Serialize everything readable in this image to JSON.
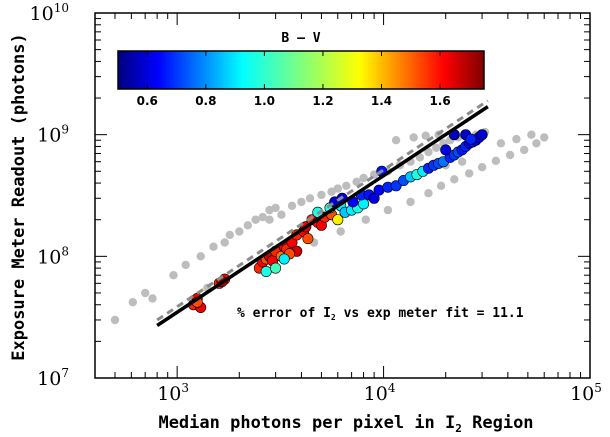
{
  "chart_data": {
    "type": "scatter",
    "title": "",
    "xlabel_prefix": "Median photons per pixel in I",
    "xlabel_subscript": "2",
    "xlabel_suffix": " Region",
    "ylabel": "Exposure Meter Readout (photons)",
    "xscale": "log",
    "yscale": "log",
    "xlim": [
      400,
      100000
    ],
    "ylim": [
      10000000,
      10000000000
    ],
    "x_ticks": [
      {
        "base": "10",
        "exp": "3",
        "value": 1000
      },
      {
        "base": "10",
        "exp": "4",
        "value": 10000
      },
      {
        "base": "10",
        "exp": "5",
        "value": 100000
      }
    ],
    "y_ticks": [
      {
        "base": "10",
        "exp": "7",
        "value": 10000000
      },
      {
        "base": "10",
        "exp": "8",
        "value": 100000000
      },
      {
        "base": "10",
        "exp": "9",
        "value": 1000000000
      },
      {
        "base": "10",
        "exp": "10",
        "value": 10000000000
      }
    ],
    "colorbar": {
      "title": "B – V",
      "range": [
        0.5,
        1.75
      ],
      "ticks": [
        "0.6",
        "0.8",
        "1.0",
        "1.2",
        "1.4",
        "1.6"
      ],
      "tick_values": [
        0.6,
        0.8,
        1.0,
        1.2,
        1.4,
        1.6
      ],
      "colormap": "jet"
    },
    "fit_line": {
      "style": "solid black",
      "points": [
        [
          800,
          27000000
        ],
        [
          32000,
          1700000000
        ]
      ]
    },
    "reference_line": {
      "style": "dashed gray",
      "points": [
        [
          800,
          30000000
        ],
        [
          32000,
          1900000000
        ]
      ]
    },
    "annotation": {
      "prefix": "% error of I",
      "subscript": "2",
      "suffix": " vs exp meter fit = 11.1"
    },
    "gray_points": [
      [
        500,
        30000000
      ],
      [
        610,
        42000000
      ],
      [
        700,
        50000000
      ],
      [
        760,
        45000000
      ],
      [
        960,
        70000000
      ],
      [
        1100,
        85000000
      ],
      [
        1300,
        100000000
      ],
      [
        1500,
        120000000
      ],
      [
        1700,
        130000000
      ],
      [
        1800,
        150000000
      ],
      [
        2000,
        160000000
      ],
      [
        2200,
        180000000
      ],
      [
        2400,
        200000000
      ],
      [
        2600,
        210000000
      ],
      [
        2800,
        240000000
      ],
      [
        3000,
        250000000
      ],
      [
        2800,
        200000000
      ],
      [
        3200,
        220000000
      ],
      [
        3600,
        260000000
      ],
      [
        4000,
        280000000
      ],
      [
        4400,
        300000000
      ],
      [
        5000,
        320000000
      ],
      [
        5600,
        340000000
      ],
      [
        6000,
        360000000
      ],
      [
        6600,
        380000000
      ],
      [
        7400,
        410000000
      ],
      [
        8000,
        440000000
      ],
      [
        9000,
        470000000
      ],
      [
        10500,
        500000000
      ],
      [
        12000,
        560000000
      ],
      [
        13500,
        600000000
      ],
      [
        15000,
        650000000
      ],
      [
        16500,
        720000000
      ],
      [
        18000,
        780000000
      ],
      [
        19500,
        850000000
      ],
      [
        21000,
        900000000
      ],
      [
        23000,
        950000000
      ],
      [
        25000,
        1000000000
      ],
      [
        28000,
        1000000000
      ],
      [
        31000,
        1050000000
      ],
      [
        14000,
        950000000
      ],
      [
        16000,
        980000000
      ],
      [
        18500,
        1000000000
      ],
      [
        11500,
        900000000
      ],
      [
        1400,
        55000000
      ],
      [
        1650,
        62000000
      ],
      [
        2500,
        90000000
      ],
      [
        3400,
        110000000
      ],
      [
        4600,
        130000000
      ],
      [
        6200,
        160000000
      ],
      [
        8200,
        200000000
      ],
      [
        10500,
        240000000
      ],
      [
        13500,
        280000000
      ],
      [
        16500,
        330000000
      ],
      [
        19000,
        380000000
      ],
      [
        22000,
        430000000
      ],
      [
        26000,
        480000000
      ],
      [
        30000,
        540000000
      ],
      [
        35000,
        610000000
      ],
      [
        41000,
        680000000
      ],
      [
        48000,
        750000000
      ],
      [
        55000,
        850000000
      ],
      [
        60000,
        950000000
      ],
      [
        52000,
        1000000000
      ],
      [
        44000,
        920000000
      ],
      [
        37000,
        850000000
      ],
      [
        20000,
        560000000
      ],
      [
        24000,
        600000000
      ]
    ],
    "colored_points": [
      [
        1200,
        40000000,
        1.55
      ],
      [
        1250,
        45000000,
        1.6
      ],
      [
        1300,
        38000000,
        1.62
      ],
      [
        1250,
        42000000,
        1.5
      ],
      [
        1600,
        60000000,
        1.55
      ],
      [
        1700,
        65000000,
        1.6
      ],
      [
        1650,
        62000000,
        1.7
      ],
      [
        2500,
        80000000,
        1.55
      ],
      [
        2600,
        90000000,
        1.6
      ],
      [
        2700,
        95000000,
        1.5
      ],
      [
        2800,
        100000000,
        1.65
      ],
      [
        2900,
        92000000,
        1.6
      ],
      [
        3000,
        110000000,
        1.55
      ],
      [
        3200,
        100000000,
        1.45
      ],
      [
        3300,
        120000000,
        1.6
      ],
      [
        3400,
        115000000,
        1.55
      ],
      [
        3600,
        130000000,
        1.6
      ],
      [
        3800,
        110000000,
        1.65
      ],
      [
        3500,
        105000000,
        1.5
      ],
      [
        2700,
        75000000,
        1.0
      ],
      [
        3000,
        80000000,
        1.05
      ],
      [
        3300,
        95000000,
        0.95
      ],
      [
        3800,
        150000000,
        1.55
      ],
      [
        4100,
        160000000,
        1.6
      ],
      [
        4300,
        140000000,
        1.5
      ],
      [
        4200,
        175000000,
        1.62
      ],
      [
        4500,
        200000000,
        1.55
      ],
      [
        4800,
        190000000,
        1.58
      ],
      [
        5000,
        180000000,
        1.6
      ],
      [
        5200,
        210000000,
        1.55
      ],
      [
        5600,
        220000000,
        1.5
      ],
      [
        6000,
        200000000,
        1.3
      ],
      [
        4800,
        230000000,
        1.0
      ],
      [
        5500,
        250000000,
        1.0
      ],
      [
        6200,
        260000000,
        0.95
      ],
      [
        6500,
        230000000,
        0.9
      ],
      [
        7000,
        240000000,
        0.95
      ],
      [
        7500,
        250000000,
        1.0
      ],
      [
        8000,
        270000000,
        0.95
      ],
      [
        5800,
        280000000,
        0.6
      ],
      [
        6300,
        300000000,
        0.62
      ],
      [
        7100,
        280000000,
        0.65
      ],
      [
        7800,
        320000000,
        0.7
      ],
      [
        8500,
        320000000,
        0.68
      ],
      [
        9000,
        300000000,
        0.62
      ],
      [
        9500,
        350000000,
        0.65
      ],
      [
        10500,
        370000000,
        0.7
      ],
      [
        11500,
        380000000,
        0.72
      ],
      [
        12500,
        420000000,
        0.75
      ],
      [
        9800,
        500000000,
        0.68
      ],
      [
        13500,
        450000000,
        0.9
      ],
      [
        14500,
        470000000,
        1.0
      ],
      [
        15500,
        500000000,
        0.95
      ],
      [
        16500,
        530000000,
        0.7
      ],
      [
        17500,
        560000000,
        0.72
      ],
      [
        18500,
        580000000,
        0.75
      ],
      [
        19500,
        600000000,
        0.8
      ],
      [
        21000,
        650000000,
        0.7
      ],
      [
        22000,
        680000000,
        0.72
      ],
      [
        23000,
        720000000,
        0.75
      ],
      [
        24000,
        750000000,
        0.68
      ],
      [
        25000,
        800000000,
        0.7
      ],
      [
        26000,
        850000000,
        0.65
      ],
      [
        27000,
        870000000,
        0.68
      ],
      [
        28000,
        900000000,
        0.65
      ],
      [
        29000,
        950000000,
        0.62
      ],
      [
        30000,
        1000000000,
        0.6
      ],
      [
        22000,
        1000000000,
        0.58
      ],
      [
        25000,
        1000000000,
        0.6
      ],
      [
        26500,
        920000000,
        0.7
      ],
      [
        20000,
        750000000,
        0.62
      ]
    ]
  }
}
